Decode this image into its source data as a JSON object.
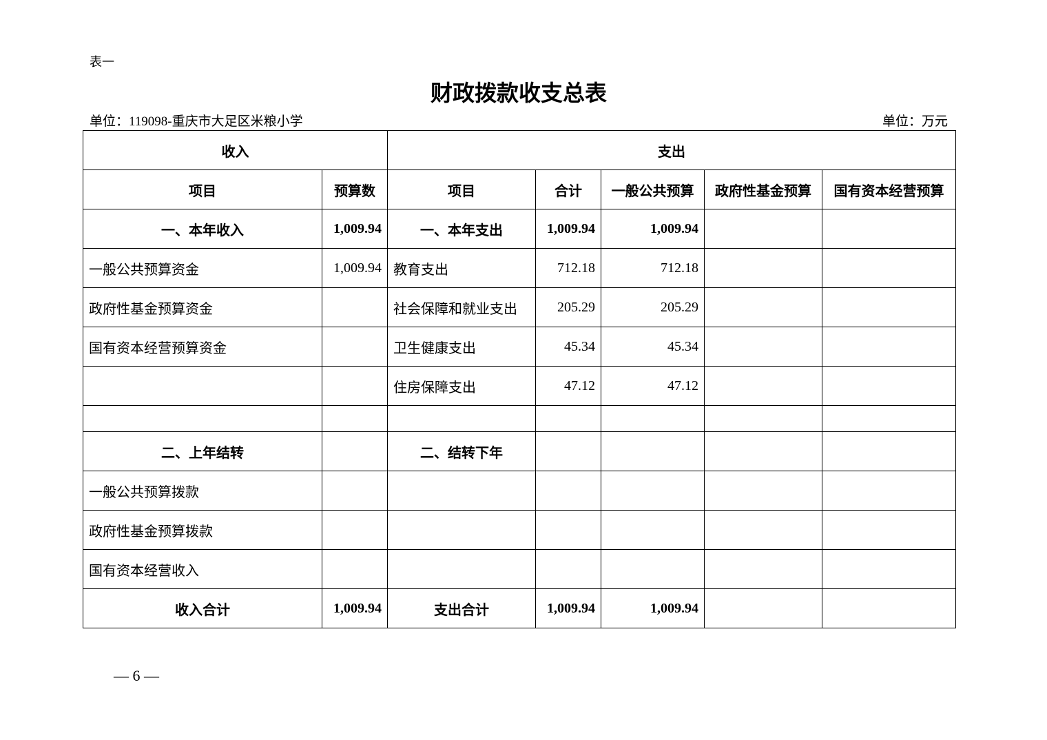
{
  "label": "表一",
  "title": "财政拨款收支总表",
  "unit_org": "单位：119098-重庆市大足区米粮小学",
  "unit_currency": "单位：万元",
  "table": {
    "group_income": "收入",
    "group_expense": "支出",
    "headers": [
      "项目",
      "预算数",
      "项目",
      "合计",
      "一般公共预算",
      "政府性基金预算",
      "国有资本经营预算"
    ],
    "rows": [
      [
        "一、本年收入",
        "1,009.94",
        "一、本年支出",
        "1,009.94",
        "1,009.94",
        "",
        ""
      ],
      [
        "一般公共预算资金",
        "1,009.94",
        "教育支出",
        "712.18",
        "712.18",
        "",
        ""
      ],
      [
        "政府性基金预算资金",
        "",
        "社会保障和就业支出",
        "205.29",
        "205.29",
        "",
        ""
      ],
      [
        "国有资本经营预算资金",
        "",
        "卫生健康支出",
        "45.34",
        "45.34",
        "",
        ""
      ],
      [
        "",
        "",
        "住房保障支出",
        "47.12",
        "47.12",
        "",
        ""
      ],
      [
        "",
        "",
        "",
        "",
        "",
        "",
        ""
      ],
      [
        "二、上年结转",
        "",
        "二、结转下年",
        "",
        "",
        "",
        ""
      ],
      [
        "一般公共预算拨款",
        "",
        "",
        "",
        "",
        "",
        ""
      ],
      [
        "政府性基金预算拨款",
        "",
        "",
        "",
        "",
        "",
        ""
      ],
      [
        "国有资本经营收入",
        "",
        "",
        "",
        "",
        "",
        ""
      ],
      [
        "收入合计",
        "1,009.94",
        "支出合计",
        "1,009.94",
        "1,009.94",
        "",
        ""
      ]
    ]
  },
  "page_number": "— 6 —"
}
